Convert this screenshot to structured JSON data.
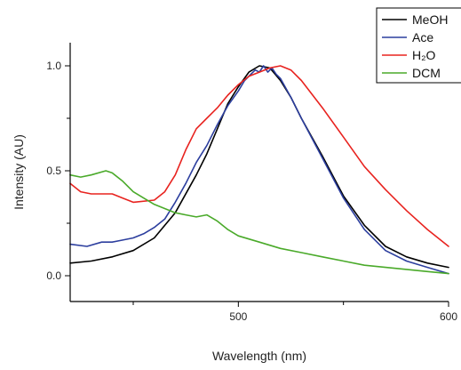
{
  "chart_data": {
    "type": "line",
    "title": "",
    "xlabel": "Wavelength (nm)",
    "ylabel": "Intensity (AU)",
    "xlim": [
      420,
      600
    ],
    "ylim": [
      -0.04,
      1.08
    ],
    "xticks": [
      500,
      600
    ],
    "yticks": [
      0.0,
      0.5,
      1.0
    ],
    "ytick_labels": [
      "0.0",
      "0.5",
      "1.0"
    ],
    "legend_position": "top-right",
    "series": [
      {
        "name": "MeOH",
        "color": "#000000",
        "points": [
          [
            420,
            0.06
          ],
          [
            430,
            0.07
          ],
          [
            440,
            0.09
          ],
          [
            450,
            0.12
          ],
          [
            460,
            0.18
          ],
          [
            470,
            0.3
          ],
          [
            480,
            0.48
          ],
          [
            485,
            0.58
          ],
          [
            490,
            0.7
          ],
          [
            495,
            0.82
          ],
          [
            500,
            0.9
          ],
          [
            505,
            0.97
          ],
          [
            510,
            1.0
          ],
          [
            515,
            0.99
          ],
          [
            520,
            0.93
          ],
          [
            525,
            0.85
          ],
          [
            530,
            0.75
          ],
          [
            540,
            0.57
          ],
          [
            550,
            0.38
          ],
          [
            560,
            0.24
          ],
          [
            570,
            0.14
          ],
          [
            580,
            0.09
          ],
          [
            590,
            0.06
          ],
          [
            600,
            0.04
          ]
        ]
      },
      {
        "name": "Ace",
        "color": "#2c3e9e",
        "points": [
          [
            420,
            0.15
          ],
          [
            428,
            0.14
          ],
          [
            435,
            0.16
          ],
          [
            440,
            0.16
          ],
          [
            445,
            0.17
          ],
          [
            450,
            0.18
          ],
          [
            455,
            0.2
          ],
          [
            460,
            0.23
          ],
          [
            465,
            0.27
          ],
          [
            470,
            0.35
          ],
          [
            475,
            0.44
          ],
          [
            480,
            0.54
          ],
          [
            485,
            0.62
          ],
          [
            490,
            0.72
          ],
          [
            495,
            0.81
          ],
          [
            500,
            0.88
          ],
          [
            503,
            0.93
          ],
          [
            506,
            0.96
          ],
          [
            508,
            0.98
          ],
          [
            510,
            0.97
          ],
          [
            512,
            1.0
          ],
          [
            514,
            0.97
          ],
          [
            516,
            0.99
          ],
          [
            518,
            0.96
          ],
          [
            520,
            0.94
          ],
          [
            525,
            0.85
          ],
          [
            530,
            0.75
          ],
          [
            540,
            0.56
          ],
          [
            550,
            0.37
          ],
          [
            560,
            0.22
          ],
          [
            570,
            0.12
          ],
          [
            580,
            0.07
          ],
          [
            590,
            0.04
          ],
          [
            600,
            0.01
          ]
        ]
      },
      {
        "name": "H₂O",
        "color": "#e8231f",
        "points": [
          [
            420,
            0.44
          ],
          [
            425,
            0.4
          ],
          [
            430,
            0.39
          ],
          [
            440,
            0.39
          ],
          [
            445,
            0.37
          ],
          [
            450,
            0.35
          ],
          [
            460,
            0.36
          ],
          [
            465,
            0.4
          ],
          [
            470,
            0.48
          ],
          [
            475,
            0.6
          ],
          [
            480,
            0.7
          ],
          [
            485,
            0.75
          ],
          [
            490,
            0.8
          ],
          [
            495,
            0.86
          ],
          [
            500,
            0.91
          ],
          [
            505,
            0.95
          ],
          [
            510,
            0.97
          ],
          [
            515,
            0.99
          ],
          [
            520,
            1.0
          ],
          [
            525,
            0.98
          ],
          [
            530,
            0.93
          ],
          [
            540,
            0.8
          ],
          [
            550,
            0.66
          ],
          [
            560,
            0.52
          ],
          [
            570,
            0.41
          ],
          [
            580,
            0.31
          ],
          [
            590,
            0.22
          ],
          [
            600,
            0.14
          ]
        ]
      },
      {
        "name": "DCM",
        "color": "#4aaa2a",
        "points": [
          [
            420,
            0.48
          ],
          [
            425,
            0.47
          ],
          [
            430,
            0.48
          ],
          [
            437,
            0.5
          ],
          [
            440,
            0.49
          ],
          [
            445,
            0.45
          ],
          [
            450,
            0.4
          ],
          [
            455,
            0.37
          ],
          [
            460,
            0.34
          ],
          [
            465,
            0.32
          ],
          [
            470,
            0.3
          ],
          [
            475,
            0.29
          ],
          [
            480,
            0.28
          ],
          [
            485,
            0.29
          ],
          [
            490,
            0.26
          ],
          [
            495,
            0.22
          ],
          [
            500,
            0.19
          ],
          [
            510,
            0.16
          ],
          [
            520,
            0.13
          ],
          [
            530,
            0.11
          ],
          [
            540,
            0.09
          ],
          [
            550,
            0.07
          ],
          [
            560,
            0.05
          ],
          [
            570,
            0.04
          ],
          [
            580,
            0.03
          ],
          [
            590,
            0.02
          ],
          [
            600,
            0.01
          ]
        ]
      }
    ]
  }
}
